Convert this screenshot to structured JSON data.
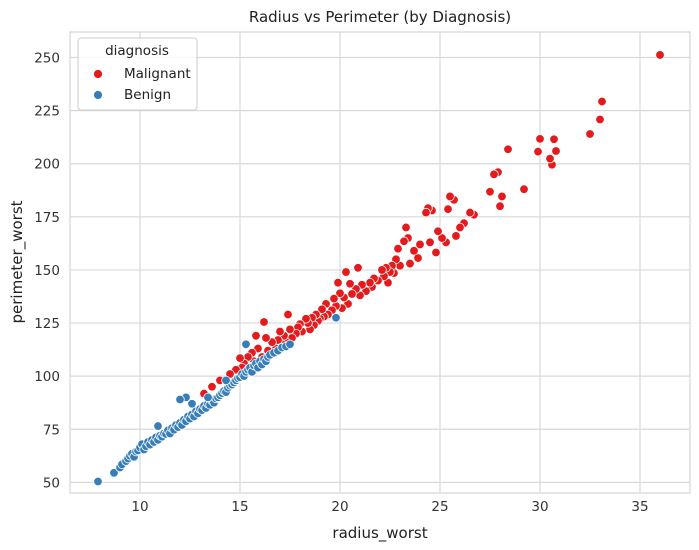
{
  "chart_data": {
    "type": "scatter",
    "title": "Radius vs Perimeter (by Diagnosis)",
    "xlabel": "radius_worst",
    "ylabel": "perimeter_worst",
    "xlim": [
      6.5,
      37.5
    ],
    "ylim": [
      45,
      262
    ],
    "xticks": [
      10,
      15,
      20,
      25,
      30,
      35
    ],
    "yticks": [
      50,
      75,
      100,
      125,
      150,
      175,
      200,
      225,
      250
    ],
    "grid": true,
    "legend": {
      "title": "diagnosis",
      "placement": "top-left"
    },
    "series": [
      {
        "name": "Malignant",
        "color": "#e41a1c",
        "points": [
          [
            36.0,
            251.2
          ],
          [
            33.1,
            229.3
          ],
          [
            33.0,
            220.8
          ],
          [
            32.5,
            214.0
          ],
          [
            30.8,
            206.0
          ],
          [
            30.7,
            211.5
          ],
          [
            30.6,
            199.5
          ],
          [
            30.5,
            202.4
          ],
          [
            30.0,
            211.7
          ],
          [
            29.9,
            205.7
          ],
          [
            29.2,
            188.0
          ],
          [
            28.4,
            206.8
          ],
          [
            28.1,
            184.6
          ],
          [
            28.0,
            180.0
          ],
          [
            27.9,
            196.0
          ],
          [
            27.7,
            195.0
          ],
          [
            27.5,
            186.8
          ],
          [
            26.7,
            176.0
          ],
          [
            26.5,
            177.0
          ],
          [
            26.2,
            172.0
          ],
          [
            26.0,
            170.0
          ],
          [
            25.8,
            166.0
          ],
          [
            25.7,
            183.0
          ],
          [
            25.5,
            184.6
          ],
          [
            25.4,
            178.6
          ],
          [
            25.3,
            163.0
          ],
          [
            25.1,
            165.0
          ],
          [
            24.9,
            168.2
          ],
          [
            24.8,
            158.2
          ],
          [
            24.6,
            178.0
          ],
          [
            24.5,
            163.0
          ],
          [
            24.4,
            179.1
          ],
          [
            24.3,
            177.0
          ],
          [
            24.0,
            162.0
          ],
          [
            23.9,
            155.6
          ],
          [
            23.7,
            159.0
          ],
          [
            23.5,
            153.0
          ],
          [
            23.4,
            165.0
          ],
          [
            23.3,
            170.0
          ],
          [
            23.2,
            163.5
          ],
          [
            23.0,
            152.0
          ],
          [
            22.9,
            160.0
          ],
          [
            22.8,
            155.0
          ],
          [
            22.7,
            148.5
          ],
          [
            22.6,
            152.0
          ],
          [
            22.5,
            149.0
          ],
          [
            22.4,
            144.0
          ],
          [
            22.3,
            151.0
          ],
          [
            22.2,
            147.0
          ],
          [
            22.1,
            150.0
          ],
          [
            21.9,
            145.0
          ],
          [
            21.7,
            146.0
          ],
          [
            21.6,
            142.0
          ],
          [
            21.5,
            144.0
          ],
          [
            21.3,
            140.0
          ],
          [
            21.1,
            143.0
          ],
          [
            21.0,
            138.0
          ],
          [
            20.9,
            151.0
          ],
          [
            20.8,
            141.0
          ],
          [
            20.6,
            138.7
          ],
          [
            20.5,
            143.5
          ],
          [
            20.4,
            134.0
          ],
          [
            20.3,
            149.0
          ],
          [
            20.2,
            137.0
          ],
          [
            20.1,
            132.0
          ],
          [
            20.0,
            139.0
          ],
          [
            19.9,
            144.0
          ],
          [
            19.8,
            133.0
          ],
          [
            19.7,
            136.5
          ],
          [
            19.6,
            131.0
          ],
          [
            19.4,
            129.0
          ],
          [
            19.3,
            134.0
          ],
          [
            19.2,
            128.0
          ],
          [
            19.1,
            131.5
          ],
          [
            19.0,
            127.0
          ],
          [
            18.9,
            126.0
          ],
          [
            18.8,
            129.0
          ],
          [
            18.7,
            124.0
          ],
          [
            18.6,
            127.5
          ],
          [
            18.5,
            122.0
          ],
          [
            18.4,
            125.0
          ],
          [
            18.3,
            127.0
          ],
          [
            18.1,
            121.0
          ],
          [
            18.0,
            124.5
          ],
          [
            17.9,
            123.0
          ],
          [
            17.8,
            120.0
          ],
          [
            17.6,
            118.0
          ],
          [
            17.5,
            122.0
          ],
          [
            17.4,
            129.0
          ],
          [
            17.3,
            116.0
          ],
          [
            17.2,
            119.0
          ],
          [
            17.1,
            115.0
          ],
          [
            17.0,
            121.0
          ],
          [
            16.9,
            117.0
          ],
          [
            16.8,
            113.0
          ],
          [
            16.6,
            116.0
          ],
          [
            16.4,
            112.0
          ],
          [
            16.3,
            118.0
          ],
          [
            16.2,
            125.5
          ],
          [
            16.1,
            109.0
          ],
          [
            15.9,
            113.0
          ],
          [
            15.8,
            119.0
          ],
          [
            15.7,
            107.0
          ],
          [
            15.6,
            111.0
          ],
          [
            15.4,
            109.0
          ],
          [
            15.2,
            106.0
          ],
          [
            15.1,
            104.0
          ],
          [
            15.0,
            108.5
          ],
          [
            14.8,
            103.0
          ],
          [
            14.5,
            101.0
          ],
          [
            13.2,
            91.8
          ],
          [
            13.6,
            95.0
          ],
          [
            14.0,
            98.0
          ]
        ]
      },
      {
        "name": "Benign",
        "color": "#377eb8",
        "points": [
          [
            7.9,
            50.4
          ],
          [
            8.7,
            54.5
          ],
          [
            9.0,
            57.0
          ],
          [
            9.1,
            58.5
          ],
          [
            9.3,
            60.0
          ],
          [
            9.4,
            61.2
          ],
          [
            9.5,
            62.5
          ],
          [
            9.6,
            63.5
          ],
          [
            9.7,
            62.0
          ],
          [
            9.8,
            64.5
          ],
          [
            9.9,
            65.0
          ],
          [
            10.0,
            66.5
          ],
          [
            10.1,
            68.0
          ],
          [
            10.2,
            65.5
          ],
          [
            10.3,
            67.0
          ],
          [
            10.4,
            69.0
          ],
          [
            10.5,
            67.8
          ],
          [
            10.6,
            70.0
          ],
          [
            10.7,
            69.0
          ],
          [
            10.8,
            71.2
          ],
          [
            10.9,
            70.0
          ],
          [
            10.9,
            76.5
          ],
          [
            11.0,
            72.0
          ],
          [
            11.1,
            71.5
          ],
          [
            11.2,
            73.0
          ],
          [
            11.3,
            72.8
          ],
          [
            11.4,
            74.5
          ],
          [
            11.5,
            73.0
          ],
          [
            11.6,
            75.5
          ],
          [
            11.7,
            74.8
          ],
          [
            11.8,
            77.0
          ],
          [
            11.9,
            76.0
          ],
          [
            12.0,
            78.0
          ],
          [
            12.1,
            77.0
          ],
          [
            12.2,
            79.5
          ],
          [
            12.3,
            78.8
          ],
          [
            12.3,
            90.0
          ],
          [
            12.4,
            81.0
          ],
          [
            12.5,
            80.0
          ],
          [
            12.6,
            82.0
          ],
          [
            12.7,
            81.0
          ],
          [
            12.8,
            83.5
          ],
          [
            12.9,
            82.5
          ],
          [
            13.0,
            84.5
          ],
          [
            13.1,
            84.0
          ],
          [
            13.2,
            86.0
          ],
          [
            13.3,
            85.0
          ],
          [
            13.4,
            87.0
          ],
          [
            13.5,
            86.5
          ],
          [
            13.6,
            88.5
          ],
          [
            13.7,
            87.5
          ],
          [
            13.8,
            89.5
          ],
          [
            13.9,
            90.0
          ],
          [
            14.0,
            91.0
          ],
          [
            14.1,
            92.0
          ],
          [
            14.2,
            93.0
          ],
          [
            14.3,
            92.5
          ],
          [
            14.4,
            94.5
          ],
          [
            14.5,
            95.5
          ],
          [
            14.6,
            96.0
          ],
          [
            14.7,
            97.0
          ],
          [
            14.8,
            98.0
          ],
          [
            14.9,
            99.0
          ],
          [
            15.0,
            99.5
          ],
          [
            15.1,
            101.0
          ],
          [
            15.2,
            100.0
          ],
          [
            15.3,
            102.0
          ],
          [
            15.4,
            103.0
          ],
          [
            15.5,
            104.0
          ],
          [
            15.6,
            102.0
          ],
          [
            15.7,
            105.0
          ],
          [
            15.8,
            106.0
          ],
          [
            15.9,
            104.0
          ],
          [
            16.0,
            107.0
          ],
          [
            16.1,
            105.5
          ],
          [
            16.2,
            108.0
          ],
          [
            16.3,
            107.0
          ],
          [
            16.4,
            109.0
          ],
          [
            16.5,
            110.0
          ],
          [
            16.7,
            111.0
          ],
          [
            16.9,
            112.0
          ],
          [
            17.1,
            113.5
          ],
          [
            17.3,
            114.0
          ],
          [
            17.5,
            115.0
          ],
          [
            15.3,
            115.0
          ],
          [
            14.3,
            98.0
          ],
          [
            19.8,
            127.5
          ],
          [
            12.0,
            89.0
          ],
          [
            12.6,
            87.0
          ],
          [
            13.4,
            90.0
          ]
        ]
      }
    ]
  }
}
